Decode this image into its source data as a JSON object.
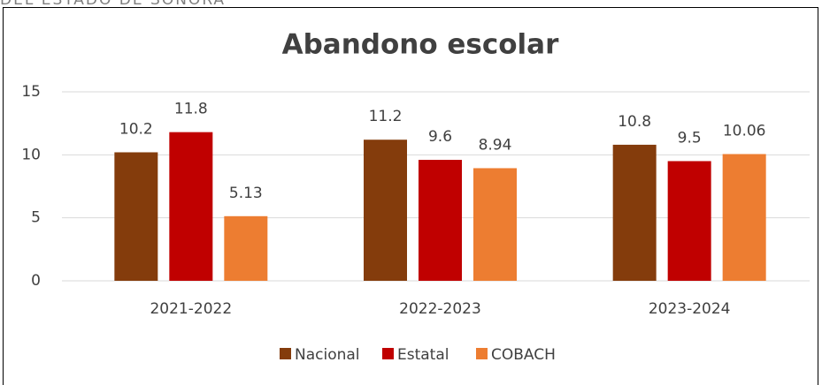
{
  "header_fragment": "DEL ESTADO DE SONORA",
  "chart_data": {
    "type": "bar",
    "title": "Abandono escolar",
    "categories": [
      "2021-2022",
      "2022-2023",
      "2023-2024"
    ],
    "series": [
      {
        "name": "Nacional",
        "color": "#843c0c",
        "values": [
          10.2,
          11.2,
          10.8
        ]
      },
      {
        "name": "Estatal",
        "color": "#c00000",
        "values": [
          11.8,
          9.6,
          9.5
        ]
      },
      {
        "name": "COBACH",
        "color": "#ed7d31",
        "values": [
          5.13,
          8.94,
          10.06
        ]
      }
    ],
    "ylim": [
      0,
      15
    ],
    "yticks": [
      0,
      5,
      10,
      15
    ],
    "grid": true,
    "legend": "bottom"
  }
}
